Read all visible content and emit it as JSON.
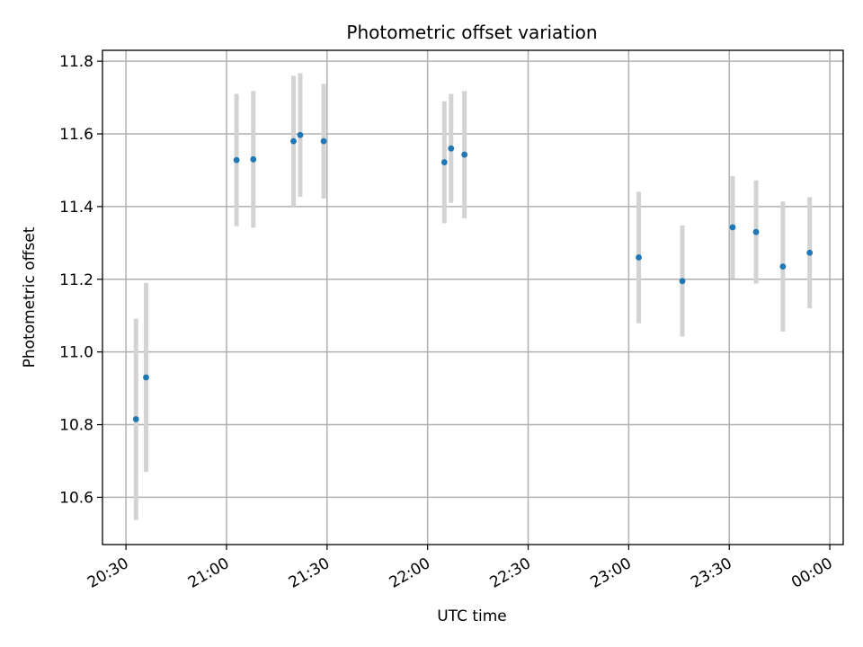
{
  "chart_data": {
    "type": "scatter",
    "title": "Photometric offset variation",
    "xlabel": "UTC time",
    "ylabel": "Photometric offset",
    "x_ticks": [
      "20:30",
      "21:00",
      "21:30",
      "22:00",
      "22:30",
      "23:00",
      "23:30",
      "00:00"
    ],
    "y_ticks": [
      "10.6",
      "10.8",
      "11.0",
      "11.2",
      "11.4",
      "11.6",
      "11.8"
    ],
    "xlim": [
      "20:23",
      "00:04"
    ],
    "ylim": [
      10.47,
      11.83
    ],
    "grid": true,
    "error_bar_color": "#d3d3d3",
    "marker_color": "#1f77b4",
    "series": [
      {
        "points": [
          {
            "x": "20:33",
            "y": 10.815,
            "err": 0.277
          },
          {
            "x": "20:36",
            "y": 10.93,
            "err": 0.26
          },
          {
            "x": "21:03",
            "y": 11.528,
            "err": 0.182
          },
          {
            "x": "21:08",
            "y": 11.53,
            "err": 0.188
          },
          {
            "x": "21:20",
            "y": 11.58,
            "err": 0.18
          },
          {
            "x": "21:22",
            "y": 11.597,
            "err": 0.17
          },
          {
            "x": "21:29",
            "y": 11.58,
            "err": 0.158
          },
          {
            "x": "22:05",
            "y": 11.522,
            "err": 0.168
          },
          {
            "x": "22:07",
            "y": 11.56,
            "err": 0.15
          },
          {
            "x": "22:11",
            "y": 11.543,
            "err": 0.175
          },
          {
            "x": "23:03",
            "y": 11.26,
            "err": 0.181
          },
          {
            "x": "23:16",
            "y": 11.195,
            "err": 0.153
          },
          {
            "x": "23:31",
            "y": 11.343,
            "err": 0.141
          },
          {
            "x": "23:38",
            "y": 11.33,
            "err": 0.142
          },
          {
            "x": "23:46",
            "y": 11.235,
            "err": 0.179
          },
          {
            "x": "23:54",
            "y": 11.273,
            "err": 0.153
          }
        ]
      }
    ]
  }
}
